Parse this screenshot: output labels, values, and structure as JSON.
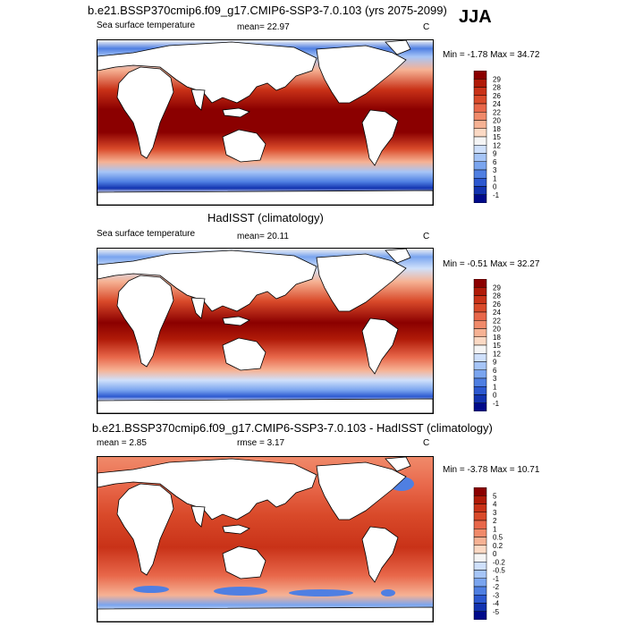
{
  "season": "JJA",
  "panels": [
    {
      "title": "b.e21.BSSP370cmip6.f09_g17.CMIP6-SSP3-7.0.103 (yrs 2075-2099)",
      "left_label": "Sea surface temperature",
      "center_label": "mean=  22.97",
      "unit": "C",
      "minmax": "Min =  -1.78 Max =  34.72",
      "colorbar_labels": [
        "29",
        "28",
        "26",
        "24",
        "22",
        "20",
        "18",
        "15",
        "12",
        "9",
        "6",
        "3",
        "1",
        "0",
        "-1"
      ],
      "colors": [
        "#8b0000",
        "#b01a08",
        "#c93218",
        "#d94a2a",
        "#e8674a",
        "#f08a6a",
        "#f6b294",
        "#fbd9c4",
        "#f5f5f5",
        "#cfe0fb",
        "#a6c5f7",
        "#7aa5ef",
        "#4f7fe2",
        "#2c58d0",
        "#1233b0",
        "#000a8a"
      ]
    },
    {
      "title": "HadISST (climatology)",
      "left_label": "Sea surface temperature",
      "center_label": "mean=  20.11",
      "unit": "C",
      "minmax": "Min =  -0.51 Max =  32.27",
      "colorbar_labels": [
        "29",
        "28",
        "26",
        "24",
        "22",
        "20",
        "18",
        "15",
        "12",
        "9",
        "6",
        "3",
        "1",
        "0",
        "-1"
      ],
      "colors": [
        "#8b0000",
        "#b01a08",
        "#c93218",
        "#d94a2a",
        "#e8674a",
        "#f08a6a",
        "#f6b294",
        "#fbd9c4",
        "#f5f5f5",
        "#cfe0fb",
        "#a6c5f7",
        "#7aa5ef",
        "#4f7fe2",
        "#2c58d0",
        "#1233b0",
        "#000a8a"
      ]
    },
    {
      "title": "b.e21.BSSP370cmip6.f09_g17.CMIP6-SSP3-7.0.103 - HadISST (climatology)",
      "left_label": "mean =   2.85",
      "center_label": "rmse =   3.17",
      "unit": "C",
      "minmax": "Min =  -3.78 Max =  10.71",
      "colorbar_labels": [
        "5",
        "4",
        "3",
        "2",
        "1",
        "0.5",
        "0.2",
        "0",
        "-0.2",
        "-0.5",
        "-1",
        "-2",
        "-3",
        "-4",
        "-5"
      ],
      "colors": [
        "#8b0000",
        "#b01a08",
        "#c93218",
        "#d94a2a",
        "#e8674a",
        "#f08a6a",
        "#f6b294",
        "#fbd9c4",
        "#f5f5f5",
        "#cfe0fb",
        "#a6c5f7",
        "#7aa5ef",
        "#4f7fe2",
        "#2c58d0",
        "#1233b0",
        "#000a8a"
      ]
    }
  ]
}
